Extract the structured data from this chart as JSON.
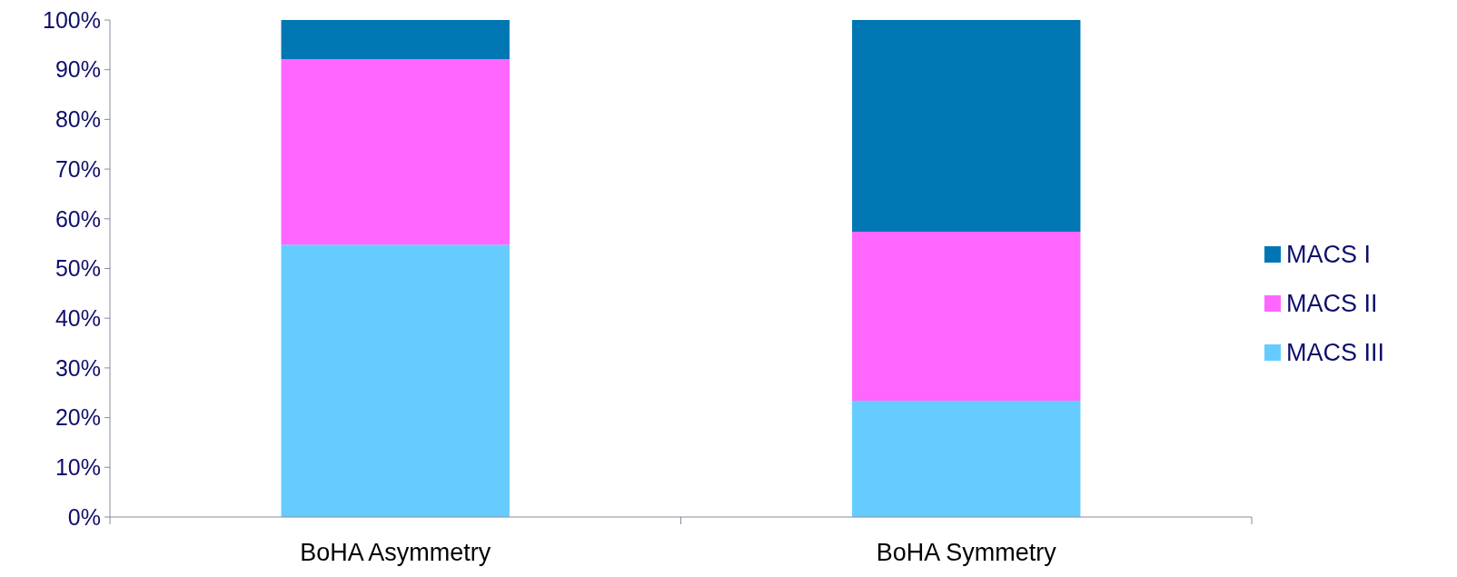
{
  "chart_data": {
    "type": "bar",
    "stacked": true,
    "categories": [
      "BoHA Asymmetry",
      "BoHA Symmetry"
    ],
    "series": [
      {
        "name": "MACS III",
        "color": "#66ccff",
        "values": [
          54.8,
          23.4
        ]
      },
      {
        "name": "MACS II",
        "color": "#ff66ff",
        "values": [
          37.3,
          34.0
        ]
      },
      {
        "name": "MACS I",
        "color": "#0077b3",
        "values": [
          7.9,
          42.6
        ]
      }
    ],
    "ylim": [
      0,
      100
    ],
    "yticks": [
      {
        "value": 0,
        "label": "0%"
      },
      {
        "value": 10,
        "label": "10%"
      },
      {
        "value": 20,
        "label": "20%"
      },
      {
        "value": 30,
        "label": "30%"
      },
      {
        "value": 40,
        "label": "40%"
      },
      {
        "value": 50,
        "label": "50%"
      },
      {
        "value": 60,
        "label": "60%"
      },
      {
        "value": 70,
        "label": "70%"
      },
      {
        "value": 80,
        "label": "80%"
      },
      {
        "value": 90,
        "label": "90%"
      },
      {
        "value": 100,
        "label": "100%"
      }
    ],
    "grid": false,
    "legend": "right"
  }
}
